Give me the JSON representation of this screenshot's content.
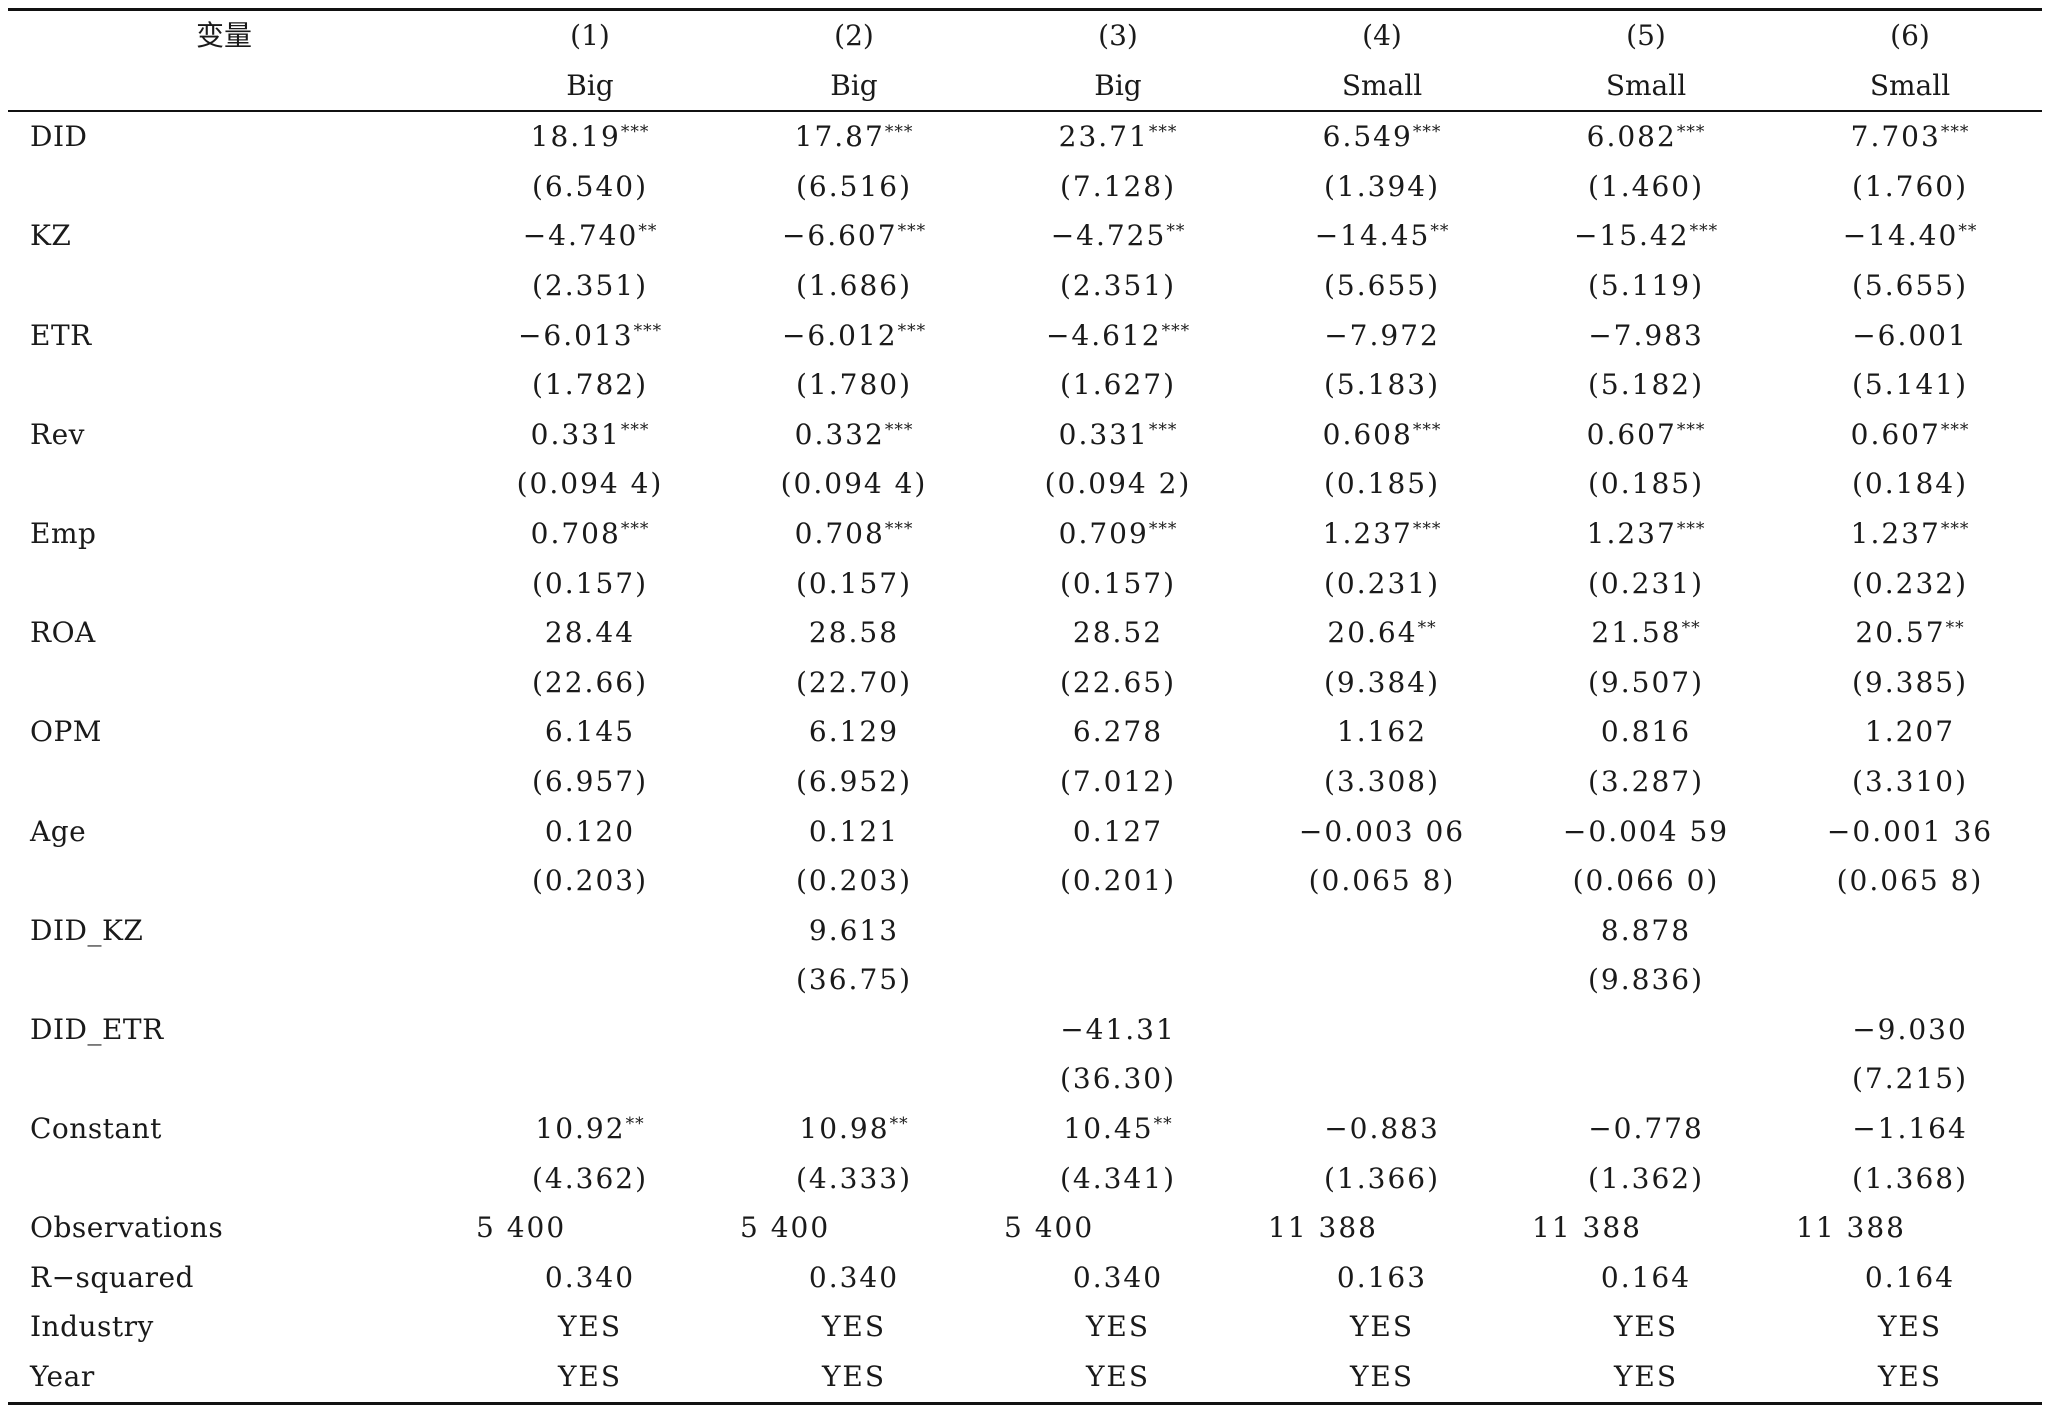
{
  "table": {
    "var_header": "变量",
    "col_numbers": [
      "(1)",
      "(2)",
      "(3)",
      "(4)",
      "(5)",
      "(6)"
    ],
    "col_groups": [
      "Big",
      "Big",
      "Big",
      "Small",
      "Small",
      "Small"
    ],
    "coef_rows": [
      {
        "name": "DID",
        "coef": [
          {
            "v": "18.19",
            "s": "***"
          },
          {
            "v": "17.87",
            "s": "***"
          },
          {
            "v": "23.71",
            "s": "***"
          },
          {
            "v": "6.549",
            "s": "***"
          },
          {
            "v": "6.082",
            "s": "***"
          },
          {
            "v": "7.703",
            "s": "***"
          }
        ],
        "se": [
          "(6.540)",
          "(6.516)",
          "(7.128)",
          "(1.394)",
          "(1.460)",
          "(1.760)"
        ]
      },
      {
        "name": "KZ",
        "coef": [
          {
            "v": "−4.740",
            "s": "**"
          },
          {
            "v": "−6.607",
            "s": "***"
          },
          {
            "v": "−4.725",
            "s": "**"
          },
          {
            "v": "−14.45",
            "s": "**"
          },
          {
            "v": "−15.42",
            "s": "***"
          },
          {
            "v": "−14.40",
            "s": "**"
          }
        ],
        "se": [
          "(2.351)",
          "(1.686)",
          "(2.351)",
          "(5.655)",
          "(5.119)",
          "(5.655)"
        ]
      },
      {
        "name": "ETR",
        "coef": [
          {
            "v": "−6.013",
            "s": "***"
          },
          {
            "v": "−6.012",
            "s": "***"
          },
          {
            "v": "−4.612",
            "s": "***"
          },
          {
            "v": "−7.972",
            "s": ""
          },
          {
            "v": "−7.983",
            "s": ""
          },
          {
            "v": "−6.001",
            "s": ""
          }
        ],
        "se": [
          "(1.782)",
          "(1.780)",
          "(1.627)",
          "(5.183)",
          "(5.182)",
          "(5.141)"
        ]
      },
      {
        "name": "Rev",
        "coef": [
          {
            "v": "0.331",
            "s": "***"
          },
          {
            "v": "0.332",
            "s": "***"
          },
          {
            "v": "0.331",
            "s": "***"
          },
          {
            "v": "0.608",
            "s": "***"
          },
          {
            "v": "0.607",
            "s": "***"
          },
          {
            "v": "0.607",
            "s": "***"
          }
        ],
        "se": [
          "(0.094 4)",
          "(0.094 4)",
          "(0.094 2)",
          "(0.185)",
          "(0.185)",
          "(0.184)"
        ]
      },
      {
        "name": "Emp",
        "coef": [
          {
            "v": "0.708",
            "s": "***"
          },
          {
            "v": "0.708",
            "s": "***"
          },
          {
            "v": "0.709",
            "s": "***"
          },
          {
            "v": "1.237",
            "s": "***"
          },
          {
            "v": "1.237",
            "s": "***"
          },
          {
            "v": "1.237",
            "s": "***"
          }
        ],
        "se": [
          "(0.157)",
          "(0.157)",
          "(0.157)",
          "(0.231)",
          "(0.231)",
          "(0.232)"
        ]
      },
      {
        "name": "ROA",
        "coef": [
          {
            "v": "28.44",
            "s": ""
          },
          {
            "v": "28.58",
            "s": ""
          },
          {
            "v": "28.52",
            "s": ""
          },
          {
            "v": "20.64",
            "s": "**"
          },
          {
            "v": "21.58",
            "s": "**"
          },
          {
            "v": "20.57",
            "s": "**"
          }
        ],
        "se": [
          "(22.66)",
          "(22.70)",
          "(22.65)",
          "(9.384)",
          "(9.507)",
          "(9.385)"
        ]
      },
      {
        "name": "OPM",
        "coef": [
          {
            "v": "6.145",
            "s": ""
          },
          {
            "v": "6.129",
            "s": ""
          },
          {
            "v": "6.278",
            "s": ""
          },
          {
            "v": "1.162",
            "s": ""
          },
          {
            "v": "0.816",
            "s": ""
          },
          {
            "v": "1.207",
            "s": ""
          }
        ],
        "se": [
          "(6.957)",
          "(6.952)",
          "(7.012)",
          "(3.308)",
          "(3.287)",
          "(3.310)"
        ]
      },
      {
        "name": "Age",
        "coef": [
          {
            "v": "0.120",
            "s": ""
          },
          {
            "v": "0.121",
            "s": ""
          },
          {
            "v": "0.127",
            "s": ""
          },
          {
            "v": "−0.003 06",
            "s": ""
          },
          {
            "v": "−0.004 59",
            "s": ""
          },
          {
            "v": "−0.001 36",
            "s": ""
          }
        ],
        "se": [
          "(0.203)",
          "(0.203)",
          "(0.201)",
          "(0.065 8)",
          "(0.066 0)",
          "(0.065 8)"
        ]
      },
      {
        "name": "DID_KZ",
        "coef": [
          {
            "v": "",
            "s": ""
          },
          {
            "v": "9.613",
            "s": ""
          },
          {
            "v": "",
            "s": ""
          },
          {
            "v": "",
            "s": ""
          },
          {
            "v": "8.878",
            "s": ""
          },
          {
            "v": "",
            "s": ""
          }
        ],
        "se": [
          "",
          "(36.75)",
          "",
          "",
          "(9.836)",
          ""
        ]
      },
      {
        "name": "DID_ETR",
        "coef": [
          {
            "v": "",
            "s": ""
          },
          {
            "v": "",
            "s": ""
          },
          {
            "v": "−41.31",
            "s": ""
          },
          {
            "v": "",
            "s": ""
          },
          {
            "v": "",
            "s": ""
          },
          {
            "v": "−9.030",
            "s": ""
          }
        ],
        "se": [
          "",
          "",
          "(36.30)",
          "",
          "",
          "(7.215)"
        ]
      },
      {
        "name": "Constant",
        "coef": [
          {
            "v": "10.92",
            "s": "**"
          },
          {
            "v": "10.98",
            "s": "**"
          },
          {
            "v": "10.45",
            "s": "**"
          },
          {
            "v": "−0.883",
            "s": ""
          },
          {
            "v": "−0.778",
            "s": ""
          },
          {
            "v": "−1.164",
            "s": ""
          }
        ],
        "se": [
          "(4.362)",
          "(4.333)",
          "(4.341)",
          "(1.366)",
          "(1.362)",
          "(1.368)"
        ]
      }
    ],
    "observations": {
      "name": "Observations",
      "values": [
        "5 400",
        "5 400",
        "5 400",
        "11 388",
        "11 388",
        "11 388"
      ]
    },
    "r_squared": {
      "name": "R−squared",
      "values": [
        "0.340",
        "0.340",
        "0.340",
        "0.163",
        "0.164",
        "0.164"
      ]
    },
    "industry": {
      "name": "Industry",
      "values": [
        "YES",
        "YES",
        "YES",
        "YES",
        "YES",
        "YES"
      ]
    },
    "year": {
      "name": "Year",
      "values": [
        "YES",
        "YES",
        "YES",
        "YES",
        "YES",
        "YES"
      ]
    }
  }
}
